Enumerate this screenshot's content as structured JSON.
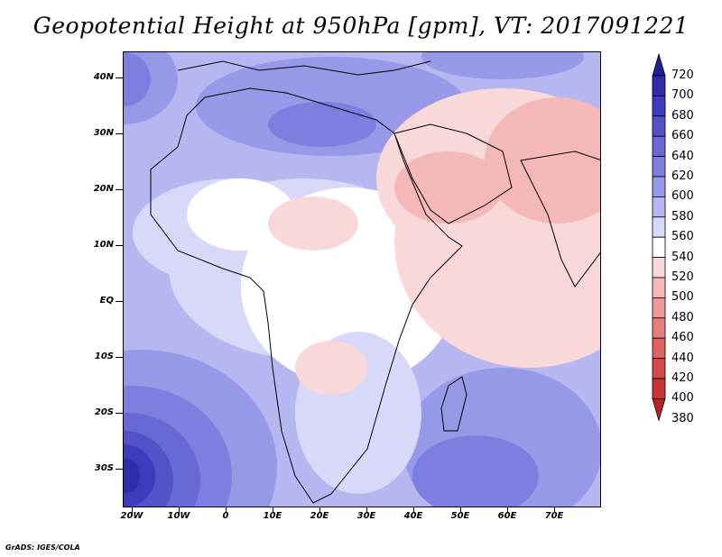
{
  "title": "Geopotential Height at 950hPa [gpm], VT: 2017091221",
  "y_axis_labels": [
    "40N",
    "30N",
    "20N",
    "10N",
    "EQ",
    "10S",
    "20S",
    "30S"
  ],
  "x_axis_labels": [
    "20W",
    "10W",
    "0",
    "10E",
    "20E",
    "30E",
    "40E",
    "50E",
    "60E",
    "70E"
  ],
  "colorbar": {
    "labels": [
      "720",
      "700",
      "680",
      "660",
      "640",
      "620",
      "600",
      "580",
      "560",
      "540",
      "520",
      "500",
      "480",
      "460",
      "440",
      "420",
      "400",
      "380"
    ],
    "colors": [
      "#20209a",
      "#2e2eac",
      "#3c3cbd",
      "#5252c9",
      "#6868d6",
      "#7e7ee0",
      "#9898e8",
      "#b6b6f0",
      "#d8d8f8",
      "#ffffff",
      "#f8d8d8",
      "#f4b8b8",
      "#ee9a9a",
      "#e67e7e",
      "#de6262",
      "#d44a4a",
      "#c83434",
      "#b82424"
    ]
  },
  "credit": "GrADS: IGES/COLA"
}
